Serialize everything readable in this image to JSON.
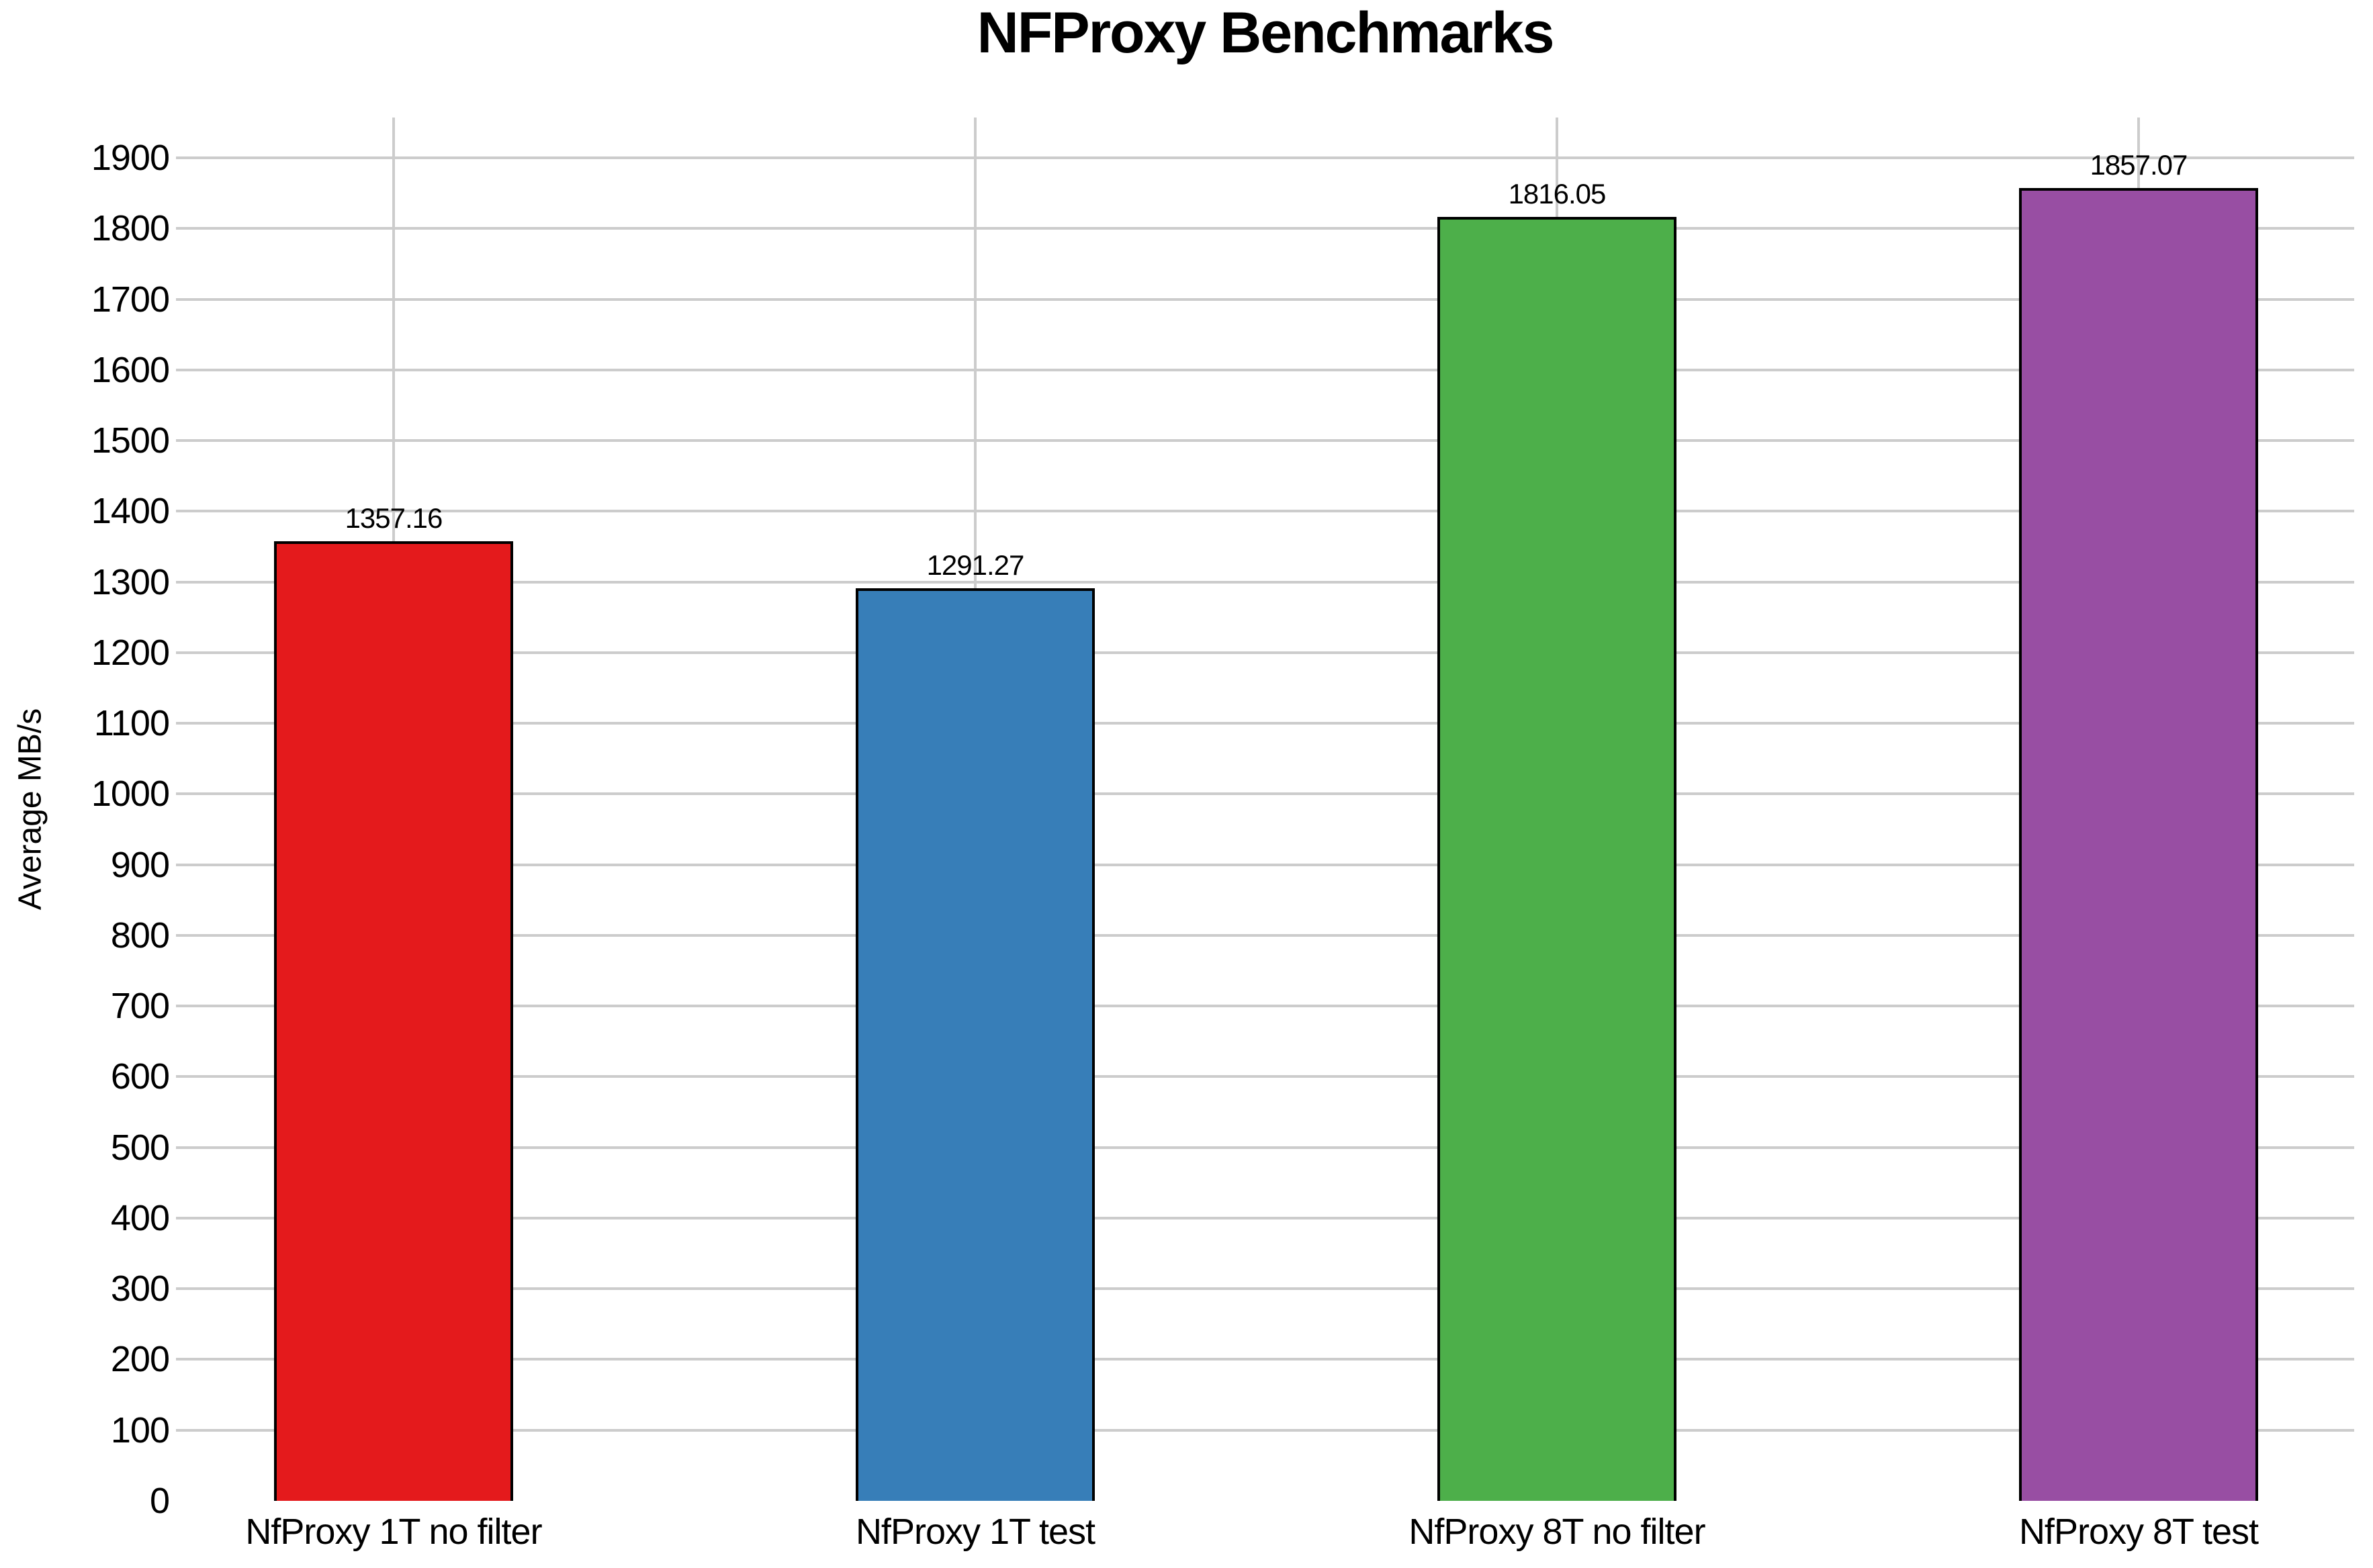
{
  "chart_data": {
    "type": "bar",
    "title": "NFProxy Benchmarks",
    "xlabel": "",
    "ylabel": "Average MB/s",
    "categories": [
      "NfProxy 1T no filter",
      "NfProxy 1T test",
      "NfProxy 8T no filter",
      "NfProxy 8T test"
    ],
    "values": [
      1357.16,
      1291.27,
      1816.05,
      1857.07
    ],
    "value_labels": [
      "1357.16",
      "1291.27",
      "1816.05",
      "1857.07"
    ],
    "bar_colors": [
      "#e41a1c",
      "#377eb8",
      "#4daf4a",
      "#984ea3"
    ],
    "bar_border_color": "#000000",
    "yticks": [
      0,
      100,
      200,
      300,
      400,
      500,
      600,
      700,
      800,
      900,
      1000,
      1100,
      1200,
      1300,
      1400,
      1500,
      1600,
      1700,
      1800,
      1900
    ],
    "ylim": [
      0,
      1900
    ],
    "grid": true,
    "gridline_color": "#cccccc",
    "background_color": "#ffffff",
    "legend_position": "none"
  }
}
